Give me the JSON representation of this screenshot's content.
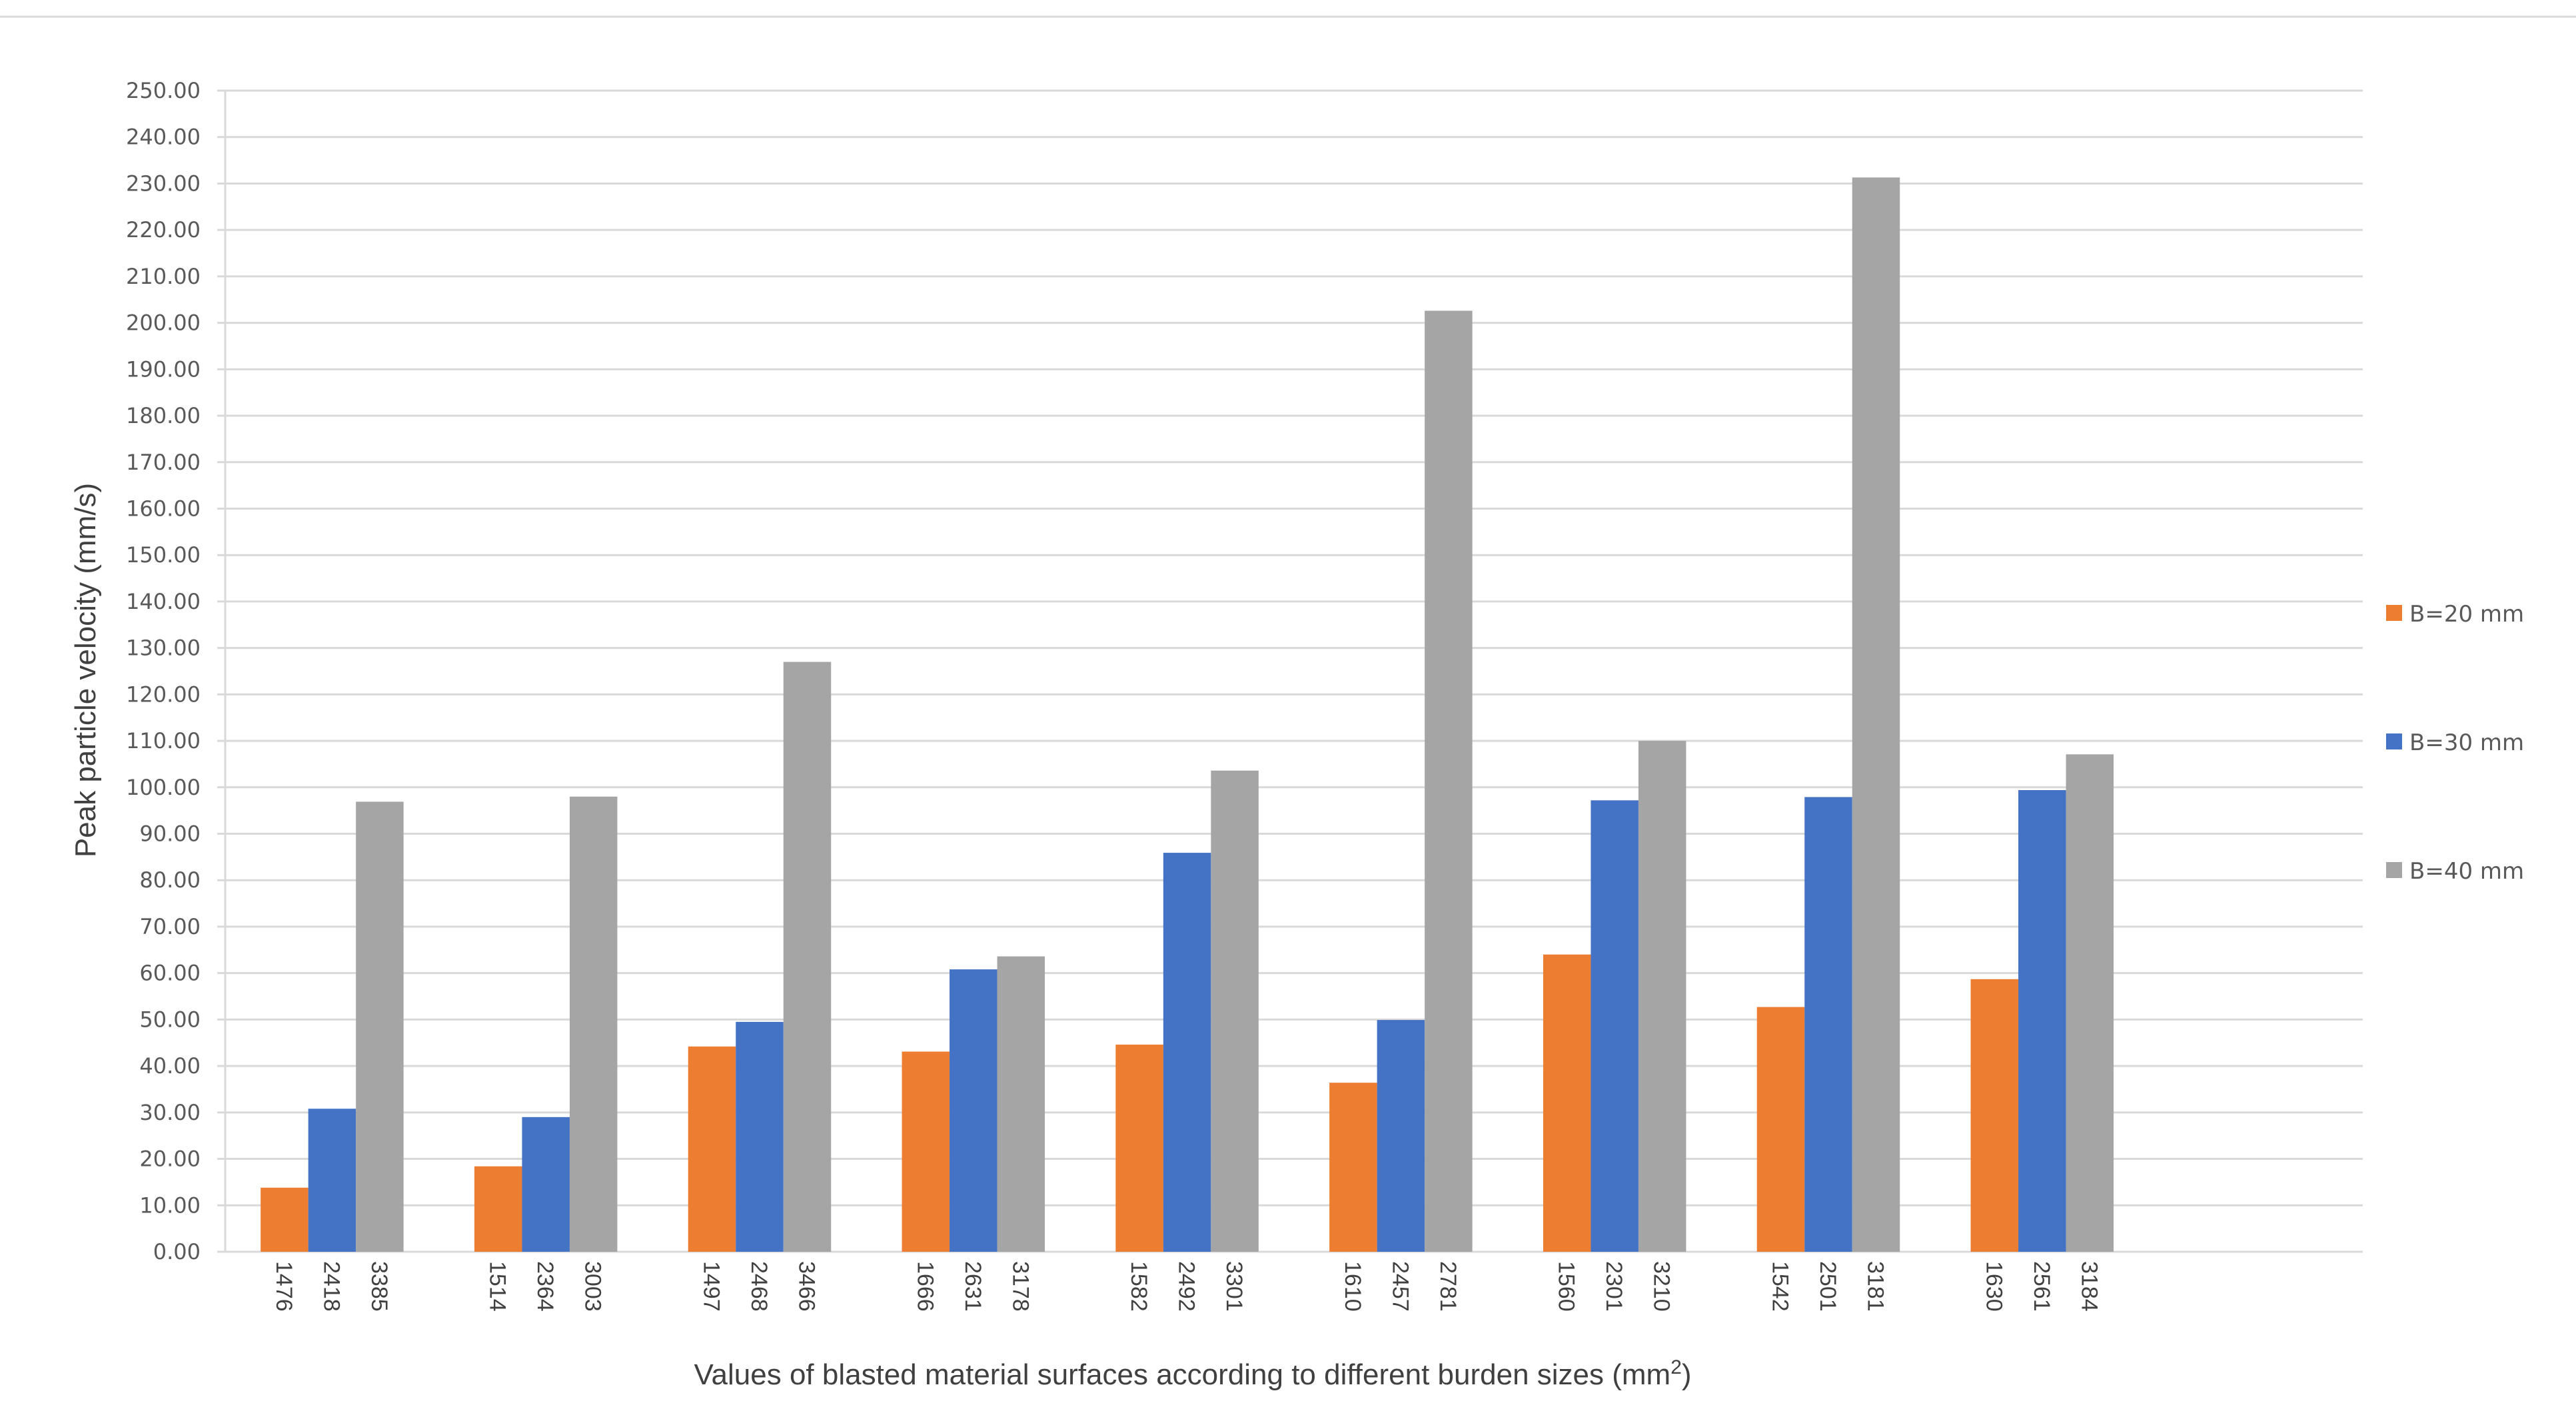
{
  "chart_data": {
    "type": "bar",
    "xlabel": "Values of blasted material surfaces according to different burden sizes (mm",
    "xlabel_superscript": "2",
    "xlabel_suffix": ")",
    "ylabel": "Peak particle velocity (mm/s)",
    "ylim": [
      0,
      250
    ],
    "ytick_step": 10,
    "ytick_labels": [
      "0.00",
      "10.00",
      "20.00",
      "30.00",
      "40.00",
      "50.00",
      "60.00",
      "70.00",
      "80.00",
      "90.00",
      "100.00",
      "110.00",
      "120.00",
      "130.00",
      "140.00",
      "150.00",
      "160.00",
      "170.00",
      "180.00",
      "190.00",
      "200.00",
      "210.00",
      "220.00",
      "230.00",
      "240.00",
      "250.00"
    ],
    "grid": true,
    "legend_position": "right",
    "group_slots": 10,
    "series": [
      {
        "name": "B=20 mm",
        "color": "#ED7D31",
        "labels": [
          "1476",
          "1514",
          "1497",
          "1666",
          "1582",
          "1610",
          "1560",
          "1542",
          "1630"
        ],
        "values": [
          13.8,
          18.4,
          44.2,
          43.1,
          44.6,
          36.4,
          64.0,
          52.7,
          58.7
        ]
      },
      {
        "name": "B=30 mm",
        "color": "#4472C4",
        "labels": [
          "2418",
          "2364",
          "2468",
          "2631",
          "2492",
          "2457",
          "2301",
          "2501",
          "2561"
        ],
        "values": [
          30.8,
          29.0,
          49.5,
          60.8,
          85.9,
          49.9,
          97.2,
          97.9,
          99.4
        ]
      },
      {
        "name": "B=40 mm",
        "color": "#A5A5A5",
        "labels": [
          "3385",
          "3003",
          "3466",
          "3178",
          "3301",
          "2781",
          "3210",
          "3181",
          "3184"
        ],
        "values": [
          96.9,
          98.0,
          127.0,
          63.6,
          103.6,
          202.6,
          110.0,
          231.3,
          107.1
        ]
      }
    ]
  }
}
